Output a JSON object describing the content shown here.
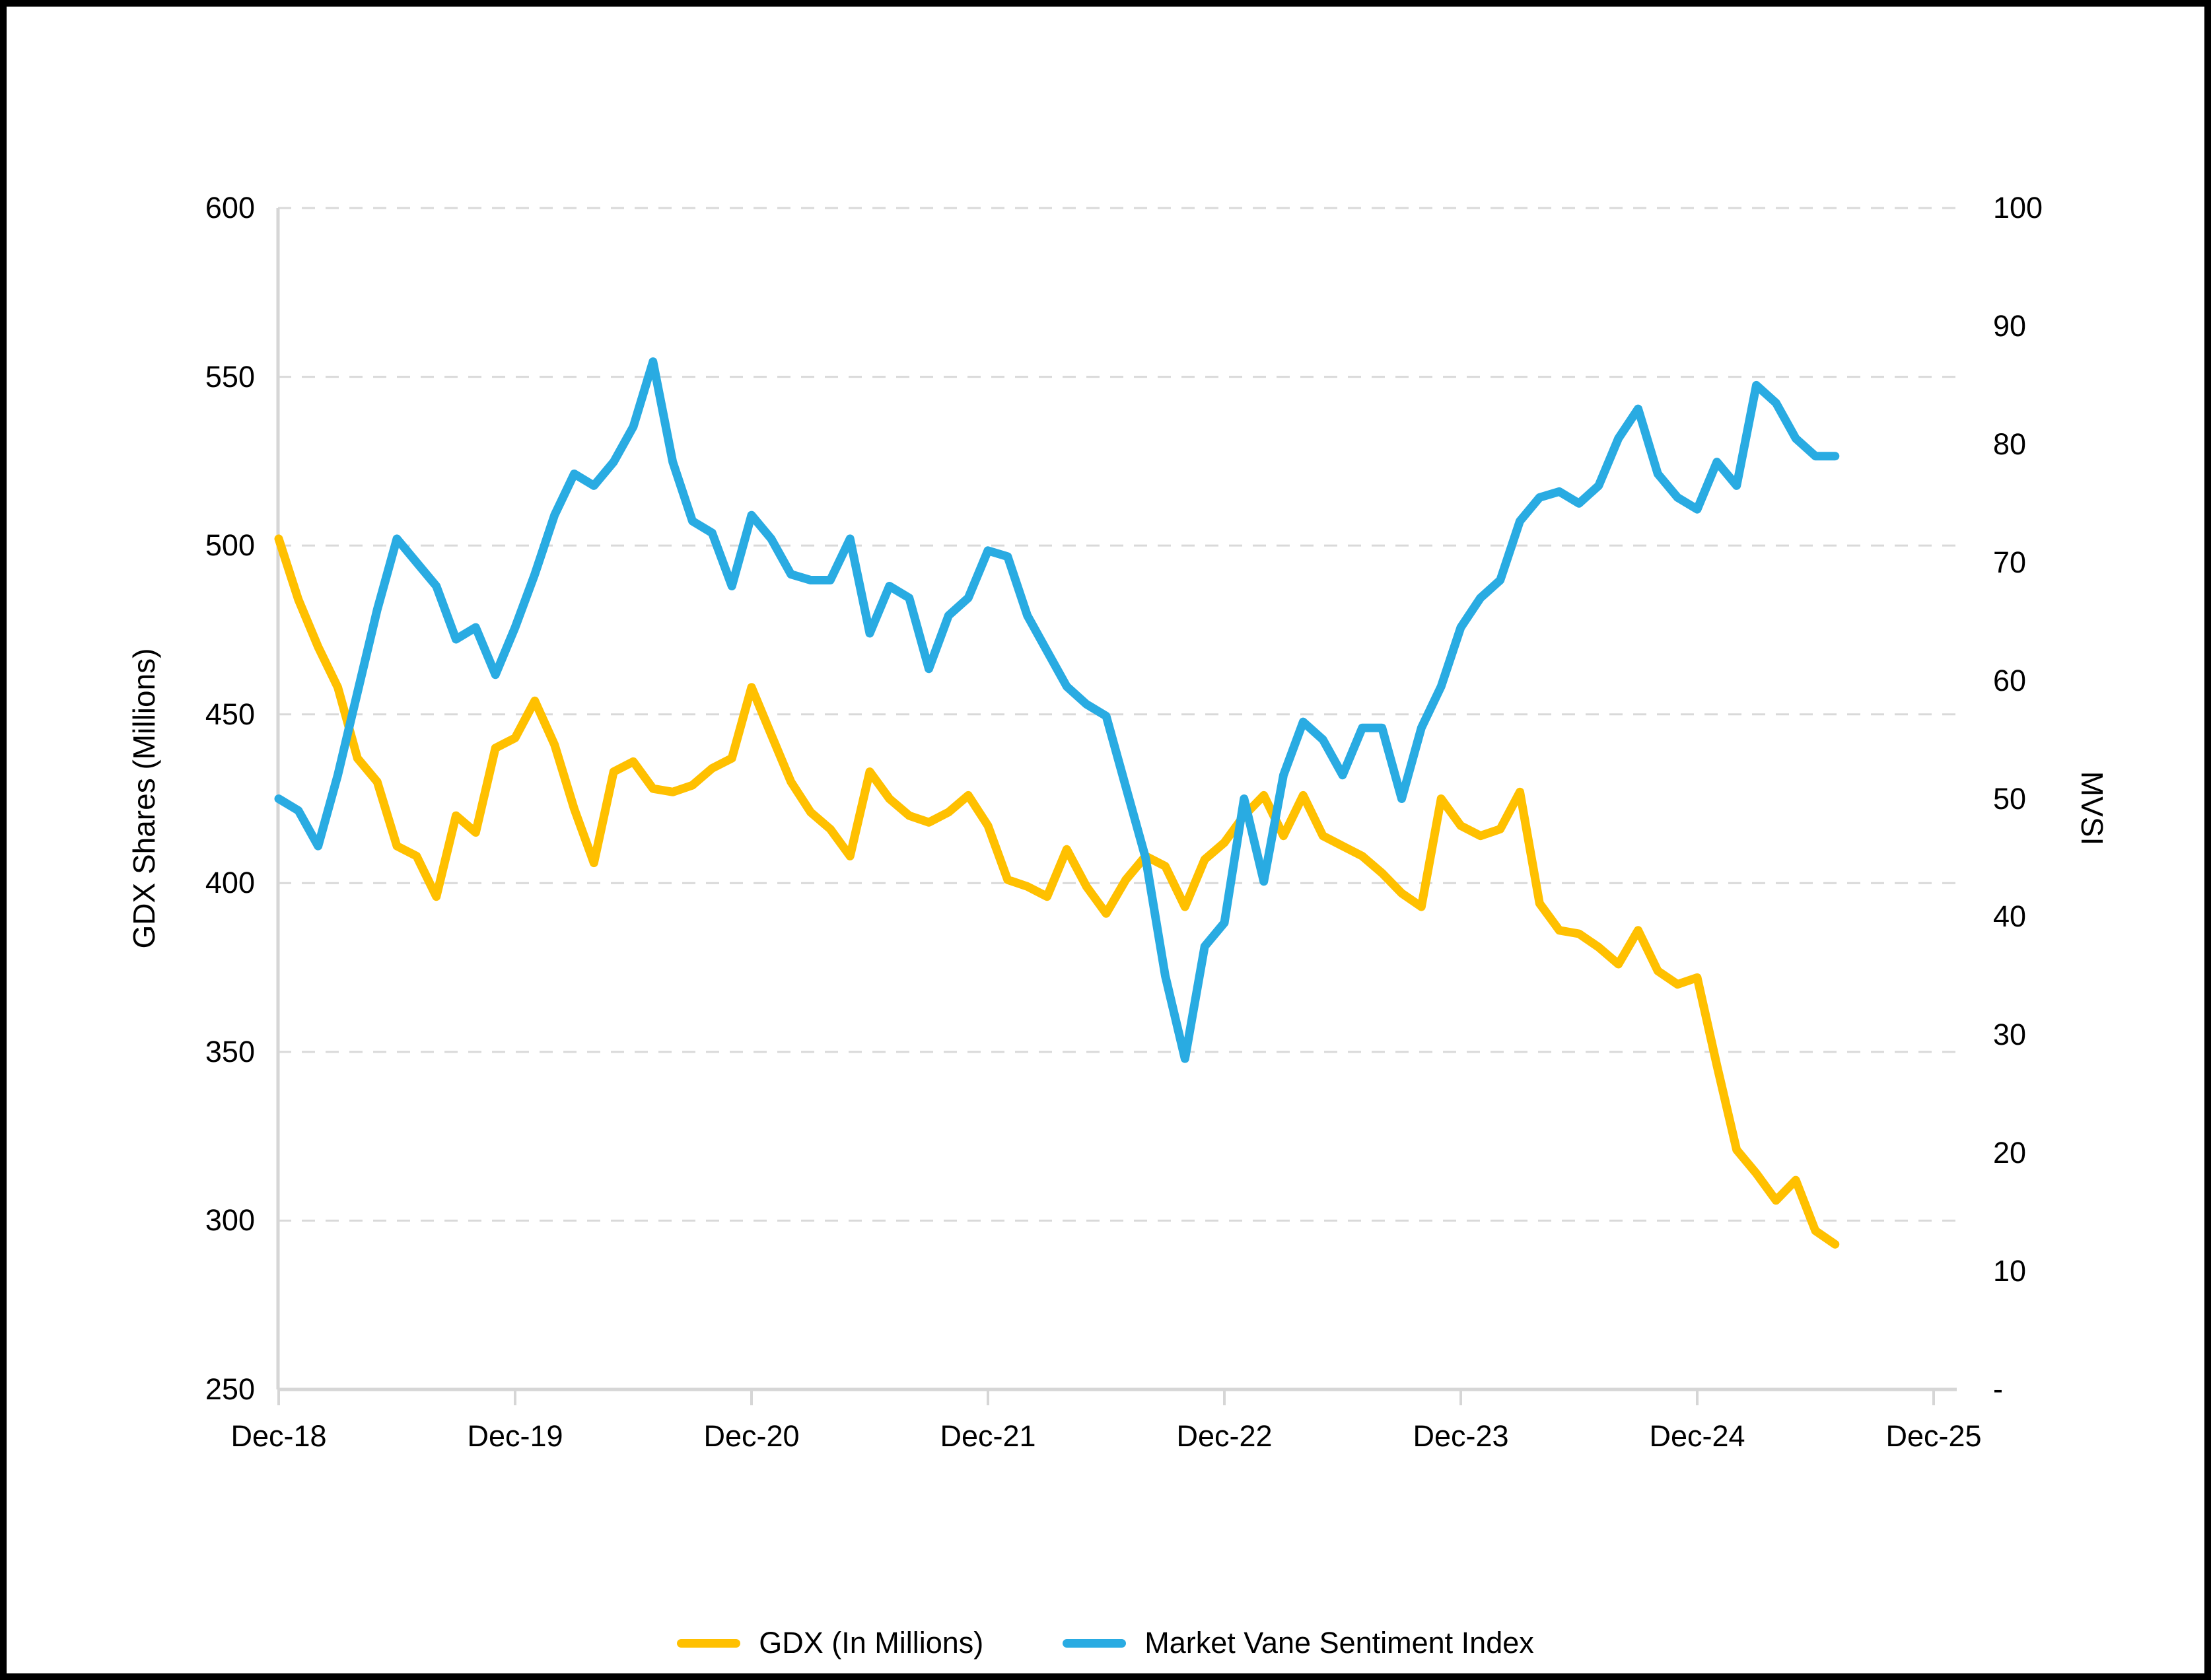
{
  "chart_data": {
    "type": "line",
    "title": "",
    "x_axis": {
      "tick_labels": [
        "Dec-18",
        "Dec-19",
        "Dec-20",
        "Dec-21",
        "Dec-22",
        "Dec-23",
        "Dec-24",
        "Dec-25"
      ],
      "cadence": "monthly",
      "series_start": "Dec-18",
      "series_end": "Jul-25"
    },
    "left_axis": {
      "title": "GDX Shares (Millions)",
      "min": 250,
      "max": 600,
      "step": 50,
      "tick_labels": [
        "600",
        "550",
        "500",
        "450",
        "400",
        "350",
        "300",
        "250"
      ]
    },
    "right_axis": {
      "title": "MVSI",
      "min": 0,
      "max": 100,
      "step": 10,
      "tick_labels": [
        "100",
        "90",
        "80",
        "70",
        "60",
        "50",
        "40",
        "30",
        "20",
        "10",
        "-"
      ]
    },
    "grid": "horizontal-dashed",
    "legend_position": "bottom-center",
    "series": [
      {
        "name": "GDX (In Millions)",
        "axis": "left",
        "color": "#FFC000",
        "values": [
          502,
          484,
          470,
          458,
          437,
          430,
          411,
          408,
          396,
          420,
          415,
          440,
          443,
          454,
          441,
          422,
          406,
          433,
          436,
          428,
          427,
          429,
          434,
          437,
          458,
          444,
          430,
          421,
          416,
          408,
          433,
          425,
          420,
          418,
          421,
          426,
          417,
          401,
          399,
          396,
          410,
          399,
          391,
          401,
          408,
          405,
          393,
          407,
          412,
          420,
          426,
          414,
          426,
          414,
          411,
          408,
          403,
          397,
          393,
          425,
          417,
          414,
          416,
          427,
          394,
          386,
          385,
          381,
          376,
          386,
          374,
          370,
          372,
          346,
          321,
          314,
          306,
          312,
          297,
          293
        ]
      },
      {
        "name": "Market Vane Sentiment Index",
        "axis": "right",
        "color": "#29ABE2",
        "values": [
          50,
          49,
          46,
          52,
          59,
          66,
          72,
          70,
          68,
          63.5,
          64.5,
          60.5,
          64.5,
          69,
          74,
          77.5,
          76.5,
          78.5,
          81.5,
          87,
          78.5,
          73.5,
          72.5,
          68,
          74,
          72,
          69,
          68.5,
          68.5,
          72,
          64,
          68,
          67,
          61,
          65.5,
          67,
          71,
          70.5,
          65.5,
          62.5,
          59.5,
          58,
          57,
          51,
          45,
          35,
          28,
          37.5,
          39.5,
          50,
          43,
          52,
          56.5,
          55,
          52,
          56,
          56,
          50,
          56,
          59.5,
          64.5,
          67,
          68.5,
          73.5,
          75.5,
          76,
          75,
          76.5,
          80.5,
          83,
          77.5,
          75.5,
          74.5,
          78.5,
          76.5,
          85,
          83.5,
          80.5,
          79,
          79
        ]
      }
    ]
  },
  "legend": {
    "items": [
      {
        "label": "GDX (In Millions)",
        "color": "#FFC000"
      },
      {
        "label": "Market Vane Sentiment Index",
        "color": "#29ABE2"
      }
    ]
  },
  "styles": {
    "grid_color": "#D9D9D9",
    "axis_color": "#D6D6D6",
    "text_color": "#000000",
    "background": "#FFFFFF",
    "frame_border": "#000000"
  }
}
